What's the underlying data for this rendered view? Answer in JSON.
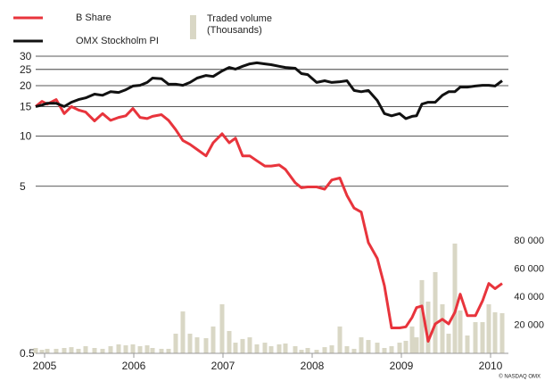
{
  "chart_data": {
    "type": "combo",
    "source": "© NASDAQ OMX",
    "x": [
      2004.9,
      2004.97,
      2005.03,
      2005.13,
      2005.22,
      2005.3,
      2005.38,
      2005.46,
      2005.56,
      2005.65,
      2005.74,
      2005.83,
      2005.91,
      2005.99,
      2006.07,
      2006.15,
      2006.21,
      2006.31,
      2006.39,
      2006.47,
      2006.55,
      2006.63,
      2006.71,
      2006.81,
      2006.89,
      2006.99,
      2007.07,
      2007.14,
      2007.22,
      2007.3,
      2007.38,
      2007.47,
      2007.54,
      2007.63,
      2007.7,
      2007.81,
      2007.88,
      2007.95,
      2008.05,
      2008.14,
      2008.22,
      2008.31,
      2008.39,
      2008.47,
      2008.55,
      2008.63,
      2008.73,
      2008.81,
      2008.89,
      2008.98,
      2009.05,
      2009.12,
      2009.17,
      2009.23,
      2009.3,
      2009.38,
      2009.46,
      2009.53,
      2009.6,
      2009.66,
      2009.74,
      2009.83,
      2009.91,
      2009.98,
      2010.05,
      2010.13
    ],
    "series": [
      {
        "name": "B Share",
        "type": "line",
        "color": "#e8343c",
        "values": [
          15.0,
          16.1,
          15.5,
          16.5,
          13.6,
          15.0,
          14.3,
          13.9,
          12.3,
          13.6,
          12.4,
          12.9,
          13.2,
          14.6,
          12.9,
          12.7,
          13.1,
          13.4,
          12.4,
          10.9,
          9.4,
          8.9,
          8.3,
          7.6,
          9.1,
          10.3,
          9.1,
          9.7,
          7.6,
          7.6,
          7.1,
          6.6,
          6.6,
          6.7,
          6.3,
          5.25,
          4.9,
          4.95,
          4.95,
          4.8,
          5.45,
          5.6,
          4.4,
          3.7,
          3.5,
          2.3,
          1.85,
          1.27,
          0.71,
          0.71,
          0.72,
          0.82,
          0.94,
          0.96,
          0.59,
          0.75,
          0.8,
          0.75,
          0.88,
          1.13,
          0.84,
          0.84,
          1.03,
          1.31,
          1.22,
          1.31
        ]
      },
      {
        "name": "OMX Stockholm PI",
        "type": "line",
        "color": "#111111",
        "values": [
          15.0,
          15.3,
          15.7,
          15.7,
          15.0,
          15.9,
          16.5,
          16.9,
          17.8,
          17.5,
          18.4,
          18.2,
          18.9,
          19.9,
          20.1,
          20.9,
          22.2,
          22.0,
          20.4,
          20.4,
          20.1,
          20.9,
          22.2,
          23.0,
          22.7,
          24.5,
          25.7,
          25.1,
          26.1,
          27.0,
          27.4,
          27.0,
          26.7,
          26.1,
          25.7,
          25.4,
          23.6,
          23.3,
          20.9,
          21.4,
          20.9,
          21.1,
          21.4,
          18.7,
          18.4,
          18.7,
          16.3,
          13.6,
          13.2,
          13.6,
          12.7,
          13.1,
          13.2,
          15.5,
          15.9,
          15.9,
          17.5,
          18.4,
          18.4,
          19.6,
          19.6,
          19.9,
          20.1,
          20.1,
          19.9,
          21.4
        ]
      },
      {
        "name": "Traded volume (Thousands)",
        "type": "bar",
        "axis": "y2",
        "color": "#d9d7c5",
        "values": [
          3800,
          2500,
          3200,
          3200,
          3800,
          4400,
          3200,
          5100,
          3800,
          3200,
          5100,
          6400,
          5700,
          6400,
          5100,
          5700,
          3800,
          3200,
          3200,
          14000,
          29800,
          14000,
          11400,
          10800,
          19100,
          34900,
          15900,
          7600,
          10200,
          11400,
          6400,
          7600,
          5100,
          6400,
          7000,
          5100,
          2500,
          3800,
          2500,
          4400,
          5700,
          19100,
          5100,
          3200,
          11400,
          9500,
          7600,
          3800,
          5100,
          7600,
          8900,
          19100,
          11400,
          52100,
          36800,
          57800,
          34900,
          14000,
          78100,
          30500,
          12700,
          22200,
          22200,
          34900,
          29200,
          28600
        ]
      }
    ],
    "xlim": [
      2004.9,
      2010.2
    ],
    "xticks": [
      2005,
      2006,
      2007,
      2008,
      2009,
      2010
    ],
    "ylim": [
      0.5,
      30
    ],
    "yticks": [
      0.5,
      5,
      10,
      15,
      20,
      25,
      30
    ],
    "ylog": true,
    "y2lim": [
      0,
      211400
    ],
    "y2ticks": [
      {
        "value": 20000,
        "label": "20 000"
      },
      {
        "value": 40000,
        "label": "40 000"
      },
      {
        "value": 60000,
        "label": "60 000"
      },
      {
        "value": 80000,
        "label": "80 000"
      }
    ],
    "grid": true
  }
}
